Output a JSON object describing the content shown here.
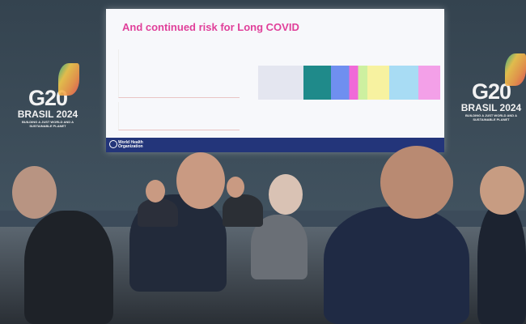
{
  "logo_left": {
    "brand": "G20",
    "subtitle": "BRASIL 2024",
    "tagline": "BUILDING A JUST WORLD AND A SUSTAINABLE PLANET"
  },
  "logo_right": {
    "brand": "G20",
    "subtitle": "BRASIL 2024",
    "tagline": "BUILDING A JUST WORLD AND A SUSTAINABLE PLANET"
  },
  "screen": {
    "slide_title": "And continued risk for Long COVID",
    "footer_org": "World Health Organization",
    "title_color": "#e0409a",
    "footer_color": "#23357a"
  }
}
